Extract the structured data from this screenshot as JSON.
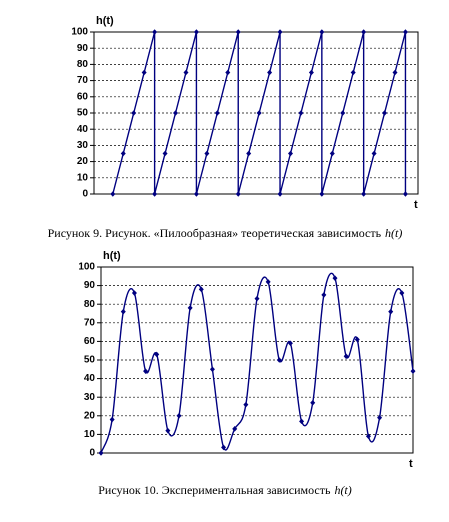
{
  "chart_data": [
    {
      "type": "line",
      "smooth": false,
      "ylabel": "h(t)",
      "xlabel": "t",
      "caption": "Рисунок 9. Рисунок. «Пилообразная» теоретическая зависимость",
      "caption_italic": "h(t)",
      "color": "#000080",
      "grid": true,
      "x": [
        0,
        1,
        2,
        3,
        4,
        4,
        5,
        6,
        7,
        8,
        8,
        9,
        10,
        11,
        12,
        12,
        13,
        14,
        15,
        16,
        16,
        17,
        18,
        19,
        20,
        20,
        21,
        22,
        23,
        24,
        24,
        25,
        26,
        27,
        28,
        28
      ],
      "values": [
        0,
        25,
        50,
        75,
        100,
        0,
        25,
        50,
        75,
        100,
        0,
        25,
        50,
        75,
        100,
        0,
        25,
        50,
        75,
        100,
        0,
        25,
        50,
        75,
        100,
        0,
        25,
        50,
        75,
        100,
        0,
        25,
        50,
        75,
        100,
        0
      ],
      "xlim": [
        -1.8,
        29.2
      ],
      "ylim": [
        0,
        100
      ],
      "yticks": [
        0,
        10,
        20,
        30,
        40,
        50,
        60,
        70,
        80,
        90,
        100
      ]
    },
    {
      "type": "line",
      "smooth": true,
      "ylabel": "h(t)",
      "xlabel": "t",
      "caption": "Рисунок 10. Экспериментальная зависимость",
      "caption_italic": "h(t)",
      "color": "#000080",
      "grid": true,
      "x": [
        0,
        1,
        2,
        3,
        4,
        5,
        6,
        7,
        8,
        9,
        10,
        11,
        12,
        13,
        14,
        15,
        16,
        17,
        18,
        19,
        20,
        21,
        22,
        23,
        24,
        25,
        26,
        27,
        28
      ],
      "values": [
        0,
        18,
        76,
        86,
        44,
        53,
        12,
        20,
        78,
        88,
        45,
        3,
        13,
        26,
        83,
        92,
        50,
        59,
        17,
        27,
        85,
        94,
        52,
        61,
        9,
        19,
        76,
        86,
        44
      ],
      "xlim": [
        0,
        28
      ],
      "ylim": [
        0,
        100
      ],
      "yticks": [
        0,
        10,
        20,
        30,
        40,
        50,
        60,
        70,
        80,
        90,
        100
      ]
    }
  ]
}
